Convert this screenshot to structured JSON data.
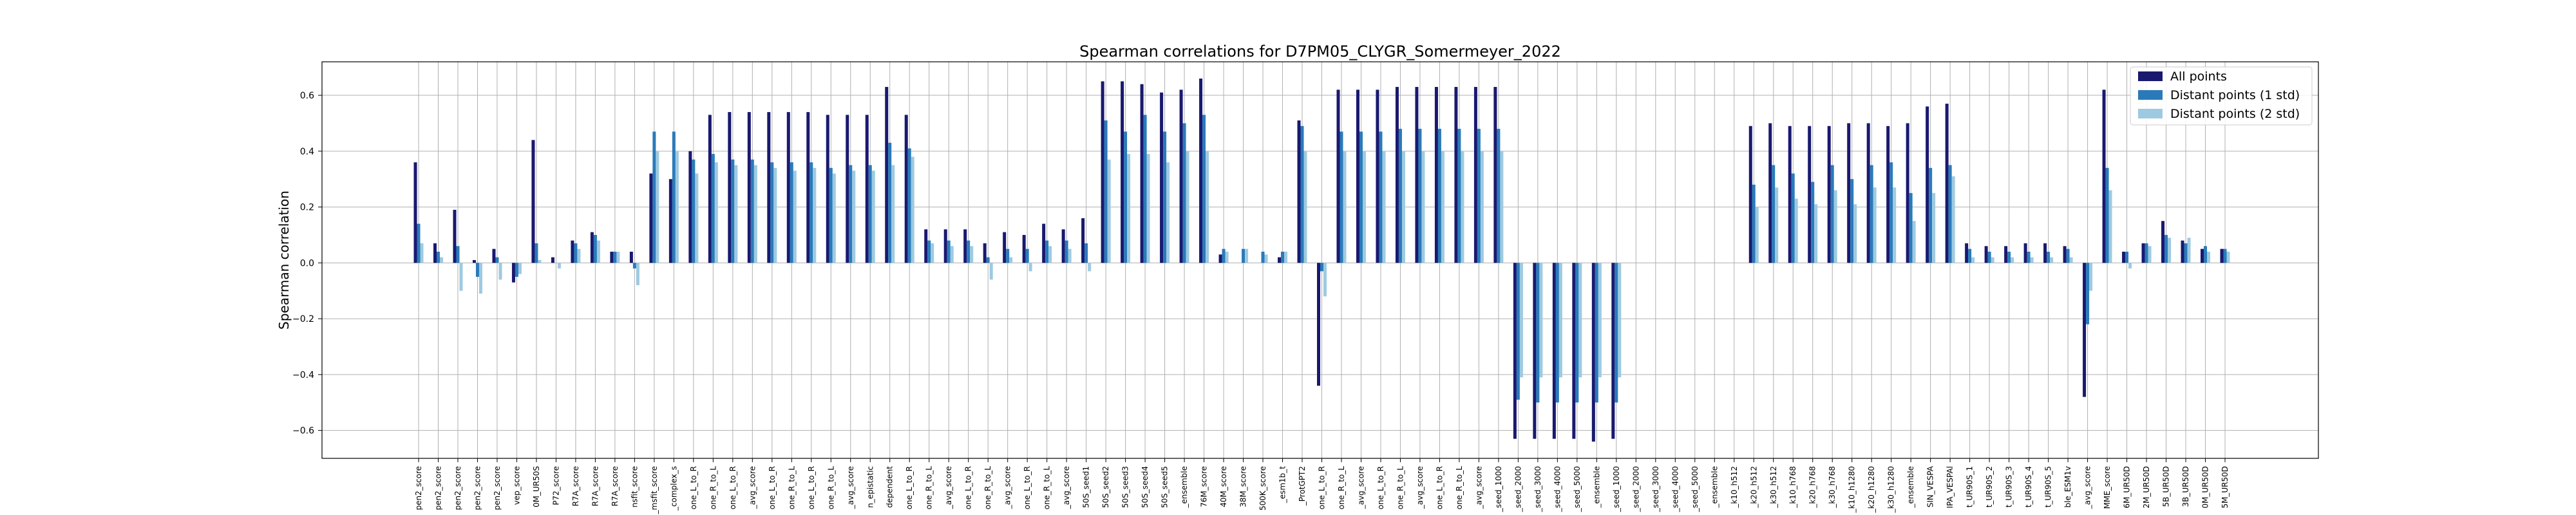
{
  "chart_data": {
    "type": "bar",
    "title": "Spearman correlations for D7PM05_CLYGR_Somermeyer_2022",
    "xlabel": "",
    "ylabel": "Spearman correlation",
    "ylim": [
      -0.7,
      0.72
    ],
    "yticks": [
      -0.6,
      -0.4,
      -0.2,
      0.0,
      0.2,
      0.4,
      0.6
    ],
    "ytick_labels": [
      "−0.6",
      "−0.4",
      "−0.2",
      "0.0",
      "0.2",
      "0.4",
      "0.6"
    ],
    "grid": true,
    "legend_position": "top-right",
    "colors": [
      "#191970",
      "#2a7ab9",
      "#9ecae1"
    ],
    "categories": [
      "pen2_score",
      "pen2_score",
      "pen2_score",
      "pen2_score",
      "pen2_score",
      "vep_score",
      "0M_UR50S",
      "P72_score",
      "R7A_score",
      "R7A_score",
      "R7A_score",
      "nsfit_score",
      "_msfit_score",
      "_complex_s",
      "one_L_to_R",
      "one_R_to_L",
      "one_L_to_R",
      "_avg_score",
      "one_L_to_R",
      "one_R_to_L",
      "one_L_to_R",
      "one_R_to_L",
      "_avg_score",
      "n_epistatic",
      "dependent",
      "one_L_to_R",
      "one_R_to_L",
      "_avg_score",
      "one_L_to_R",
      "one_R_to_L",
      "_avg_score",
      "one_L_to_R",
      "one_R_to_L",
      "_avg_score",
      "50S_seed1",
      "50S_seed2",
      "50S_seed3",
      "50S_seed4",
      "50S_seed5",
      "_ensemble",
      "76M_score",
      "40M_score",
      "38M_score",
      "500K_score",
      "_esm1b_t",
      "_ProtGPT2",
      "one_L_to_R",
      "one_R_to_L",
      "_avg_score",
      "one_L_to_R",
      "one_R_to_L",
      "_avg_score",
      "one_L_to_R",
      "one_R_to_L",
      "_avg_score",
      "_seed_1000",
      "_seed_2000",
      "_seed_3000",
      "_seed_4000",
      "_seed_5000",
      "_ensemble",
      "_seed_1000",
      "_seed_2000",
      "_seed_3000",
      "_seed_4000",
      "_seed_5000",
      "_ensemble",
      "_k10_h512",
      "_k20_h512",
      "_k30_h512",
      "_k10_h768",
      "_k20_h768",
      "_k30_h768",
      "_k10_h1280",
      "_k20_h1280",
      "_k30_h1280",
      "_ensemble",
      "SIN_VESPA",
      "IPA_VESPAl",
      "t_UR90S_1",
      "t_UR90S_2",
      "t_UR90S_3",
      "t_UR90S_4",
      "t_UR90S_5",
      "ble_ESM1v",
      "_avg_score",
      "MME_score",
      "6M_UR50D",
      "2M_UR50D",
      "5B_UR50D",
      "3B_UR50D",
      "0M_UR50D",
      "5M_UR50D"
    ],
    "series": [
      {
        "name": "All points",
        "values": [
          0.36,
          0.07,
          0.19,
          0.01,
          0.05,
          -0.07,
          0.44,
          0.02,
          0.08,
          0.11,
          0.04,
          0.04,
          0.32,
          0.3,
          0.4,
          0.53,
          0.54,
          0.54,
          0.54,
          0.54,
          0.54,
          0.53,
          0.53,
          0.53,
          0.63,
          0.53,
          0.12,
          0.12,
          0.12,
          0.07,
          0.11,
          0.1,
          0.14,
          0.12,
          0.16,
          0.65,
          0.65,
          0.64,
          0.61,
          0.62,
          0.66,
          0.03,
          0.0,
          0.0,
          0.02,
          0.51,
          -0.44,
          0.62,
          0.62,
          0.62,
          0.63,
          0.63,
          0.63,
          0.63,
          0.63,
          0.63,
          -0.63,
          -0.63,
          -0.63,
          -0.63,
          -0.64,
          -0.63,
          0.0,
          0.0,
          0.0,
          0.0,
          0.0,
          0.0,
          0.49,
          0.5,
          0.49,
          0.49,
          0.49,
          0.5,
          0.5,
          0.49,
          0.5,
          0.56,
          0.57,
          0.07,
          0.06,
          0.06,
          0.07,
          0.07,
          0.06,
          -0.48,
          0.62,
          0.04,
          0.07,
          0.15,
          0.08,
          0.05,
          0.05
        ]
      },
      {
        "name": "Distant points (1 std)",
        "values": [
          0.14,
          0.04,
          0.06,
          -0.05,
          0.02,
          -0.05,
          0.07,
          0.0,
          0.07,
          0.1,
          0.04,
          -0.02,
          0.47,
          0.47,
          0.37,
          0.39,
          0.37,
          0.37,
          0.36,
          0.36,
          0.36,
          0.34,
          0.35,
          0.35,
          0.43,
          0.41,
          0.08,
          0.08,
          0.08,
          0.02,
          0.05,
          0.05,
          0.08,
          0.08,
          0.07,
          0.51,
          0.47,
          0.53,
          0.47,
          0.5,
          0.53,
          0.05,
          0.05,
          0.04,
          0.04,
          0.49,
          -0.03,
          0.47,
          0.47,
          0.47,
          0.48,
          0.48,
          0.48,
          0.48,
          0.48,
          0.48,
          -0.49,
          -0.5,
          -0.5,
          -0.5,
          -0.5,
          -0.5,
          0.0,
          0.0,
          0.0,
          0.0,
          0.0,
          0.0,
          0.28,
          0.35,
          0.32,
          0.29,
          0.35,
          0.3,
          0.35,
          0.36,
          0.25,
          0.34,
          0.35,
          0.05,
          0.04,
          0.04,
          0.04,
          0.04,
          0.05,
          -0.22,
          0.34,
          0.04,
          0.07,
          0.1,
          0.07,
          0.06,
          0.05
        ]
      },
      {
        "name": "Distant points (2 std)",
        "values": [
          0.07,
          0.02,
          -0.1,
          -0.11,
          -0.06,
          -0.04,
          0.01,
          -0.02,
          0.05,
          0.08,
          0.04,
          -0.08,
          0.4,
          0.4,
          0.32,
          0.36,
          0.35,
          0.35,
          0.34,
          0.33,
          0.34,
          0.32,
          0.33,
          0.33,
          0.35,
          0.38,
          0.07,
          0.06,
          0.06,
          -0.06,
          0.02,
          -0.03,
          0.06,
          0.05,
          -0.03,
          0.37,
          0.39,
          0.39,
          0.36,
          0.4,
          0.4,
          0.04,
          0.05,
          0.03,
          0.04,
          0.4,
          -0.12,
          0.4,
          0.4,
          0.4,
          0.4,
          0.4,
          0.4,
          0.4,
          0.4,
          0.4,
          -0.41,
          -0.41,
          -0.41,
          -0.41,
          -0.41,
          -0.41,
          0.0,
          0.0,
          0.0,
          0.0,
          0.0,
          0.0,
          0.2,
          0.27,
          0.23,
          0.21,
          0.26,
          0.21,
          0.27,
          0.27,
          0.15,
          0.25,
          0.31,
          0.02,
          0.02,
          0.02,
          0.02,
          0.02,
          0.02,
          -0.1,
          0.26,
          -0.02,
          0.06,
          0.09,
          0.09,
          0.04,
          0.04
        ]
      }
    ]
  }
}
